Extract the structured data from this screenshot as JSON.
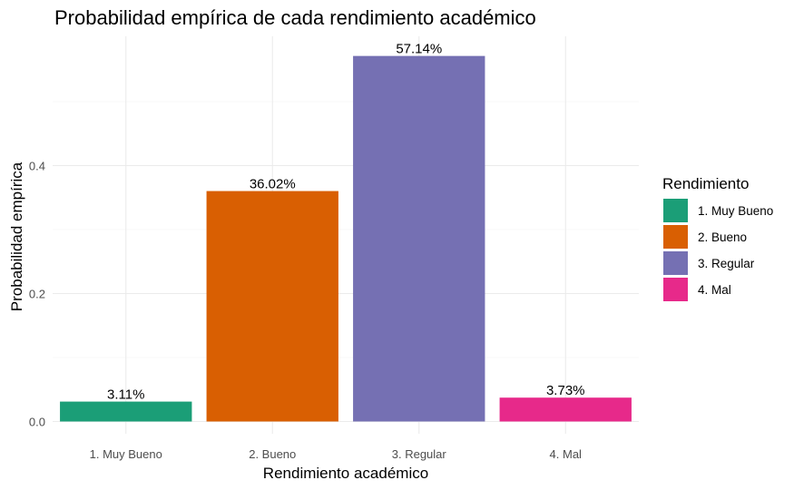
{
  "chart_data": {
    "type": "bar",
    "title": "Probabilidad empírica de cada rendimiento académico",
    "xlabel": "Rendimiento académico",
    "ylabel": "Probabilidad empírica",
    "categories": [
      "1. Muy Bueno",
      "2. Bueno",
      "3. Regular",
      "4. Mal"
    ],
    "values": [
      0.0311,
      0.3602,
      0.5714,
      0.0373
    ],
    "data_labels": [
      "3.11%",
      "36.02%",
      "57.14%",
      "3.73%"
    ],
    "colors": [
      "#1b9e77",
      "#d95f02",
      "#7570b3",
      "#e7298a"
    ],
    "yticks": [
      0.0,
      0.2,
      0.4
    ],
    "ytick_labels": [
      "0.0",
      "0.2",
      "0.4"
    ],
    "ylim": [
      0,
      0.6
    ],
    "grid": true,
    "legend": {
      "title": "Rendimiento",
      "position": "right",
      "entries": [
        "1. Muy Bueno",
        "2. Bueno",
        "3. Regular",
        "4. Mal"
      ]
    }
  }
}
